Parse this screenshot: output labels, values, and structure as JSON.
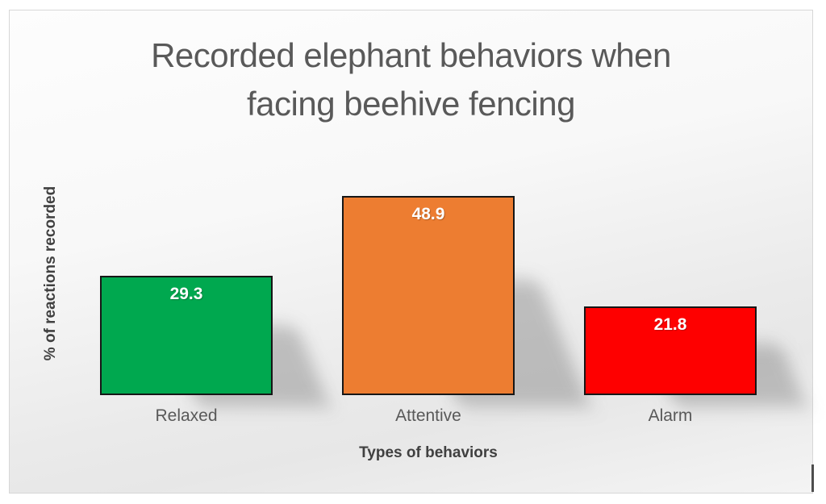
{
  "chart_data": {
    "type": "bar",
    "title": "Recorded elephant behaviors when facing beehive fencing",
    "categories": [
      "Relaxed",
      "Attentive",
      "Alarm"
    ],
    "values": [
      29.3,
      48.9,
      21.8
    ],
    "colors": [
      "#00A84F",
      "#ED7D31",
      "#FE0000"
    ],
    "xlabel": "Types of behaviors",
    "ylabel": "% of reactions recorded",
    "ylim": [
      0,
      55
    ],
    "y_axis_visible": false,
    "x_axis_line_visible": false,
    "gridlines": false,
    "legend": "none",
    "data_label_position": "inside-end",
    "data_label_color": "#FFFFFF",
    "title_color": "#595959",
    "axis_title_color": "#404040",
    "bar_border_color": "#161616",
    "bar_shadow": "perspective-lower-right"
  }
}
